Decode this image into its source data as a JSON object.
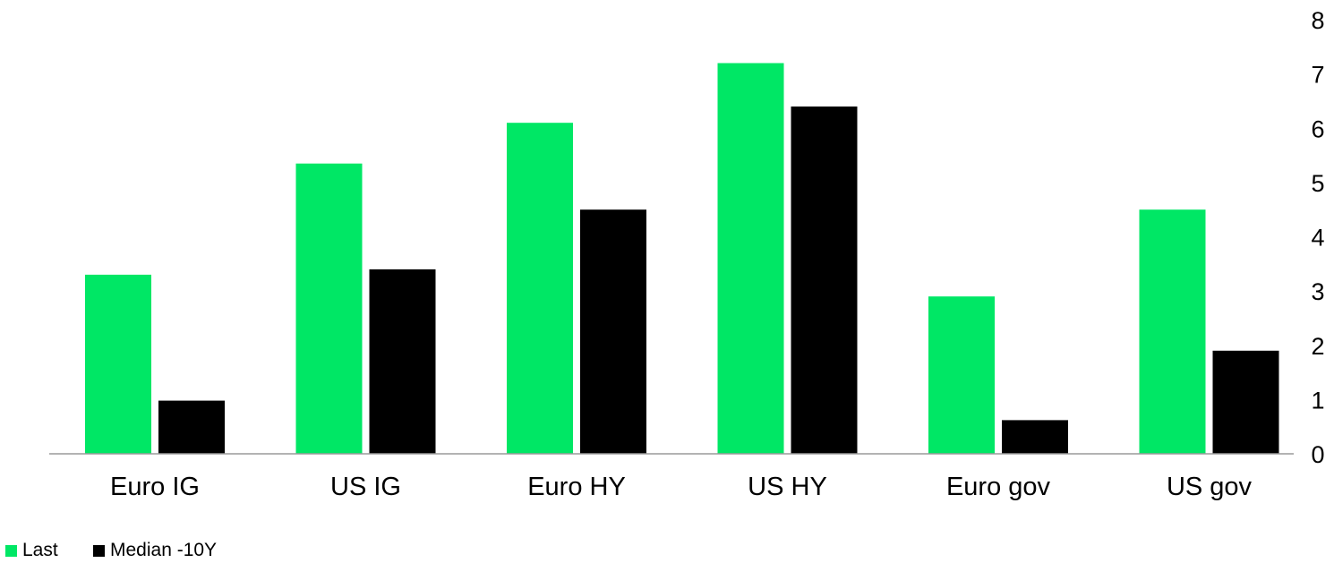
{
  "chart_data": {
    "type": "bar",
    "title": "",
    "xlabel": "",
    "ylabel": "",
    "categories": [
      "Euro IG",
      "US IG",
      "Euro HY",
      "US HY",
      "Euro gov",
      "US gov"
    ],
    "series": [
      {
        "name": "Last",
        "color": "#00e765",
        "values": [
          3.3,
          5.35,
          6.1,
          7.2,
          2.9,
          4.5
        ]
      },
      {
        "name": "Median -10Y",
        "color": "#000000",
        "values": [
          0.98,
          3.4,
          4.5,
          6.4,
          0.62,
          1.9
        ]
      }
    ],
    "ylim": [
      0,
      8
    ],
    "yticks": [
      "0",
      "1",
      "2",
      "3",
      "4",
      "5",
      "6",
      "7",
      "8"
    ],
    "y_axis_side": "right",
    "grid": false,
    "legend_position": "bottom-left"
  }
}
